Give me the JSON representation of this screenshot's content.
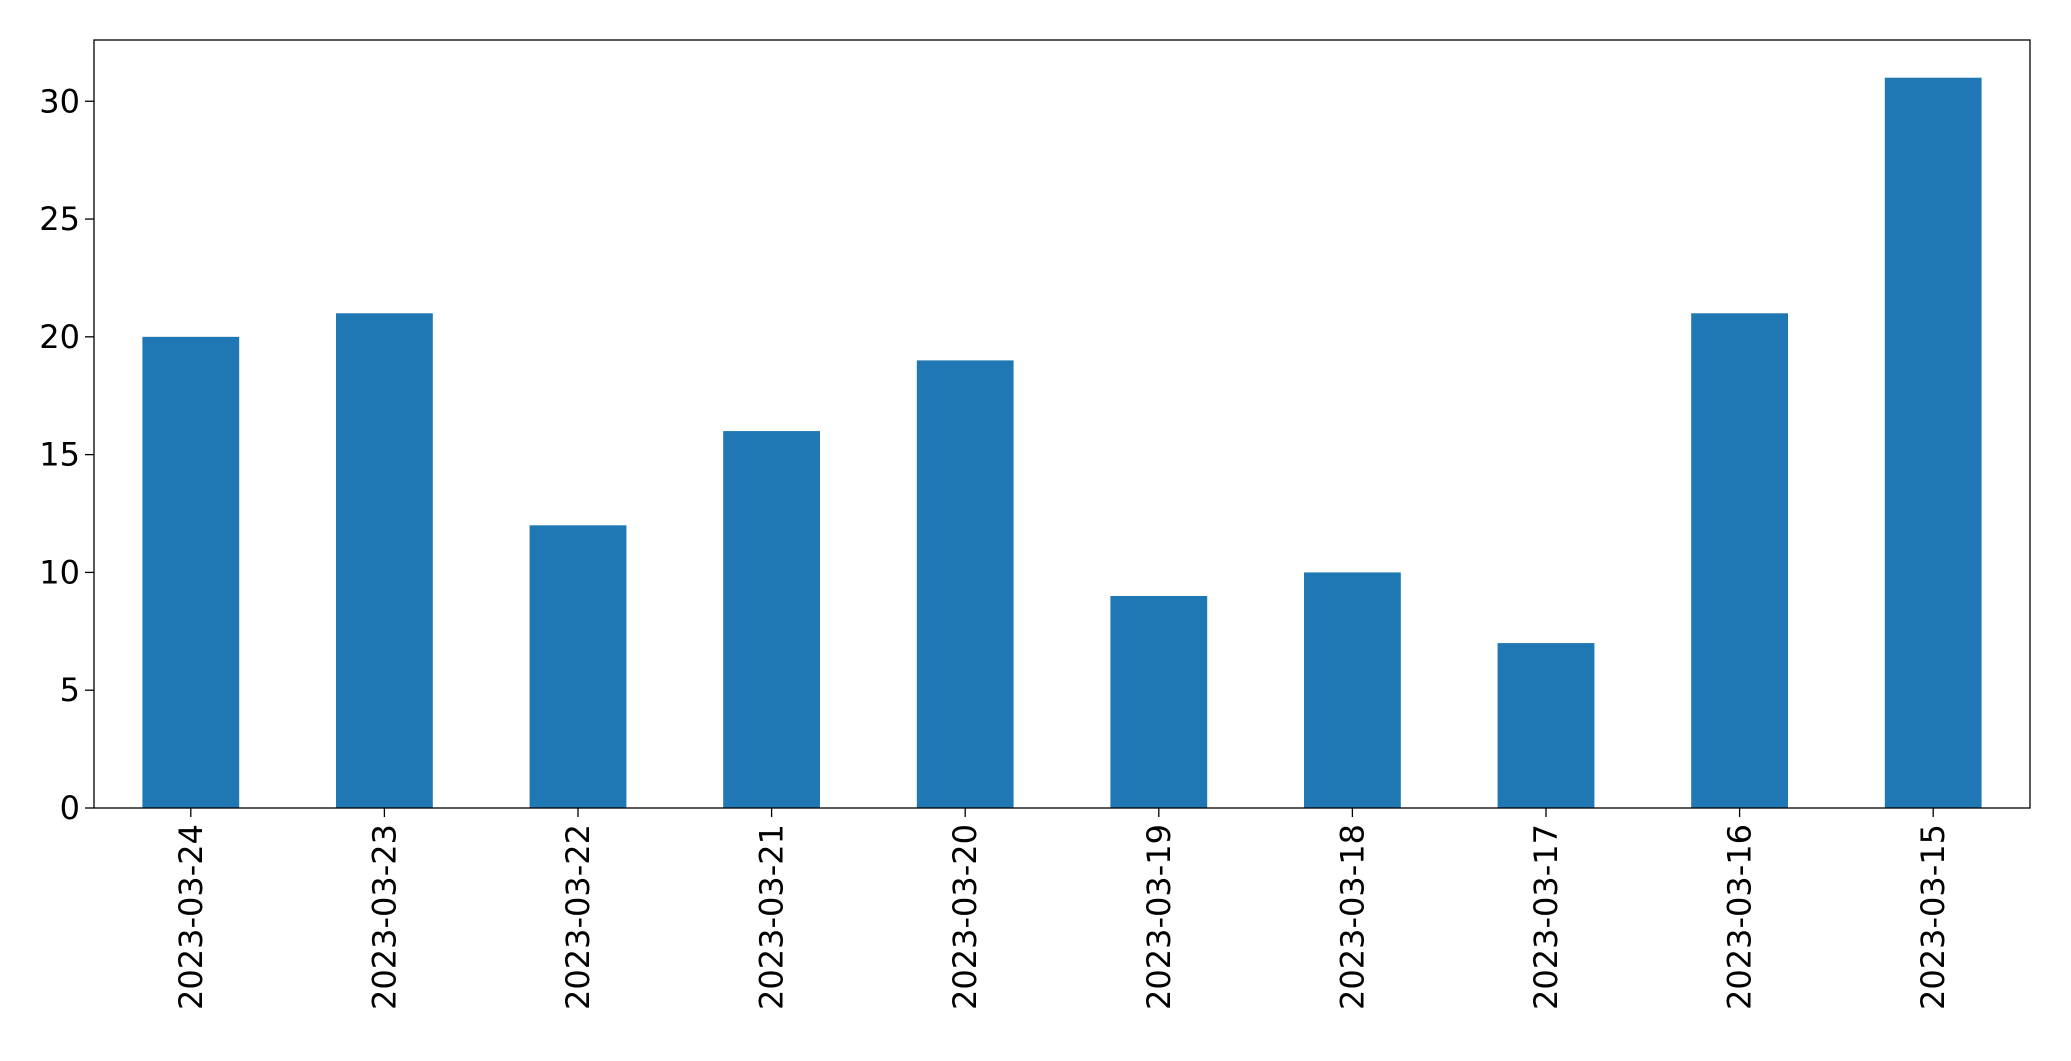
{
  "chart_data": {
    "type": "bar",
    "categories": [
      "2023-03-24",
      "2023-03-23",
      "2023-03-22",
      "2023-03-21",
      "2023-03-20",
      "2023-03-19",
      "2023-03-18",
      "2023-03-17",
      "2023-03-16",
      "2023-03-15"
    ],
    "values": [
      20,
      21,
      12,
      16,
      19,
      9,
      10,
      7,
      21,
      31
    ],
    "color": "#1f77b4",
    "ylim": [
      0,
      32.6
    ],
    "yticks": [
      0,
      5,
      10,
      15,
      20,
      25,
      30
    ],
    "grid": false
  }
}
